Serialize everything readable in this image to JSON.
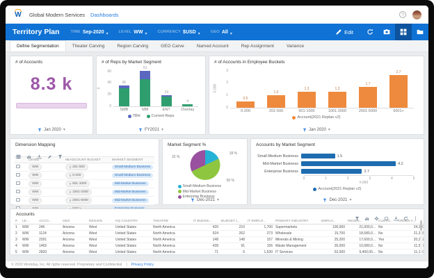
{
  "topbar": {
    "company": "Global Modern Services",
    "nav_link": "Dashboards"
  },
  "bluebar": {
    "title": "Territory Plan",
    "filters": [
      {
        "label": "TIME",
        "value": "Sep-2020"
      },
      {
        "label": "LEVEL",
        "value": "WW"
      },
      {
        "label": "CURRENCY",
        "value": "$USD"
      },
      {
        "label": "GEO",
        "value": "All"
      }
    ],
    "edit_label": "Edit",
    "action_icons": [
      "edit-pencil-icon",
      "refresh-icon",
      "camera-icon",
      "grid-view-icon",
      "folder-icon"
    ],
    "accent": "#0f72d4"
  },
  "tabs": {
    "active": "Define Segmentation",
    "items": [
      "Define Segmentation",
      "Theater Carving",
      "Region Carving",
      "GEO Carve",
      "Named Account",
      "Rep Assignment",
      "Variance"
    ]
  },
  "cards": {
    "accounts_count": {
      "title": "# of Accounts",
      "value": "8.3 k",
      "period": "Jan 2020",
      "accent": "#9d57a8"
    },
    "dimension_mapping": {
      "title": "Dimension Mapping",
      "toolbar_icons": [
        "table-icon",
        "chart-icon",
        "export-icon",
        "edit-icon",
        "filter-icon"
      ],
      "columns": [
        "LEVEL",
        "HEADCOUNT BUCKET",
        "MARKET SEGMENT"
      ],
      "rows": [
        {
          "level": "WW",
          "bucket": "201-500",
          "segment": "Small Medium Business"
        },
        {
          "level": "WW",
          "bucket": "0-200",
          "segment": "Small Medium Business"
        },
        {
          "level": "WW",
          "bucket": "501-1000",
          "segment": "Mid-Market Business"
        },
        {
          "level": "WW",
          "bucket": "1001-2000",
          "segment": "Mid-Market Business"
        },
        {
          "level": "WW",
          "bucket": "2001-5000",
          "segment": "Mid-Market Business"
        },
        {
          "level": "WW",
          "bucket": "5001+",
          "segment": "Enterprise Business"
        }
      ]
    },
    "accounts_table": {
      "title": "Accounts",
      "toolbar_icons": [
        "filter-icon",
        "chart-icon",
        "settings-icon",
        "history-icon",
        "export-icon",
        "refresh-icon",
        "more-icon"
      ],
      "columns": [
        "#",
        "LE...",
        "ACCO...",
        "GEO",
        "REGION",
        "HQ COUNTRY",
        "THEATRE",
        "IT BUDGE...",
        "BUDGET (...",
        "IT EMPLO...",
        "PRIMARY INDUSTRY",
        "EMPLO...",
        "REVEN...",
        "CUSTO...",
        "ORDER V...",
        "ACV"
      ],
      "rows": [
        [
          "1",
          "WW",
          "246",
          "Arizona",
          "West",
          "United States",
          "North America",
          "420",
          "210",
          "1,700",
          "Supermarkets",
          "100,000",
          "21,000,0...",
          "No",
          "24,140",
          "6,441"
        ],
        [
          "2",
          "WW",
          "1124",
          "Arizona",
          "West",
          "United States",
          "North America",
          "524",
          "262",
          "273",
          "Wholesale",
          "15,700",
          "18,580,0...",
          "No",
          "21,358",
          "5,649"
        ],
        [
          "3",
          "WW",
          "2291",
          "Arizona",
          "West",
          "United States",
          "North America",
          "148",
          "148",
          "157",
          "Minerals & Mining",
          "25,200",
          "17,600,0...",
          "Yes",
          "20,232",
          "5,398"
        ],
        [
          "4",
          "WW",
          "1465",
          "Arizona",
          "West",
          "United States",
          "North America",
          "428",
          "91",
          "156",
          "Waste Management",
          "35,000",
          "10,080,0...",
          "No",
          "11,587",
          "3,092"
        ],
        [
          "5",
          "WW",
          "2820",
          "Arizona",
          "West",
          "United States",
          "North America",
          "71",
          "6",
          "1,530",
          "IT Services",
          "52,000",
          "9,400,00...",
          "No",
          "11,130",
          "2,872"
        ]
      ]
    }
  },
  "chart_data": [
    {
      "id": "reps_by_market_segment",
      "type": "bar",
      "stacked": true,
      "title": "# of Reps by Market Segment",
      "categories": [
        "SMB",
        "MM",
        "ENT",
        "Overlay"
      ],
      "series": [
        {
          "name": "Current Reps",
          "color": "#2f9e6e",
          "values": [
            31,
            47,
            17,
            4
          ]
        },
        {
          "name": "TBH",
          "color": "#5a68c0",
          "values": [
            5,
            14,
            2,
            0
          ]
        }
      ],
      "totals": [
        36,
        61,
        19,
        4
      ],
      "ylabel": "#",
      "yticks": [
        0,
        20,
        40,
        60
      ],
      "ylim": [
        0,
        65
      ],
      "legend_order": [
        "TBH",
        "Current Reps"
      ],
      "period": "FY2021"
    },
    {
      "id": "accounts_in_employee_buckets",
      "type": "bar",
      "title": "# of Accounts in Employee Buckets",
      "categories": [
        "0-200",
        "201-500",
        "501-1000",
        "1001-2000",
        "2001-5000",
        "5001+"
      ],
      "values": [
        0.5,
        1.0,
        1.3,
        1.3,
        1.7,
        2.7
      ],
      "labels": [
        "0.5",
        "1.0",
        "1.3",
        "1.3",
        "1.7",
        "2.7"
      ],
      "color": "#ee8a3d",
      "ylabel": "#,000",
      "yticks": [
        0,
        1,
        2,
        3
      ],
      "ylim": [
        0,
        3.3
      ],
      "legend": "Account(2021 Replan v2)",
      "period": "Jan 2020"
    },
    {
      "id": "market_segment_pct",
      "type": "pie",
      "title": "Market Segment %",
      "slices": [
        {
          "label": "Small-Medium Business",
          "pct": 18,
          "color": "#25b2d6"
        },
        {
          "label": "Mid-Market Business",
          "pct": 50,
          "color": "#8ec63f"
        },
        {
          "label": "Enterprise Business",
          "pct": 32,
          "color": "#99509f"
        }
      ],
      "period": "Dec-2021"
    },
    {
      "id": "accounts_by_market_segment",
      "type": "bar",
      "orientation": "horizontal",
      "title": "Accounts by Market Segment",
      "categories": [
        "Small-Medium Business",
        "Mid-Market Business",
        "Enterprise Business"
      ],
      "values": [
        1.5,
        4.2,
        2.7
      ],
      "labels": [
        "1.5",
        "4.2",
        "2.7"
      ],
      "color": "#1e6cb0",
      "xlabel": "#,000",
      "xticks": [
        0,
        1,
        2,
        3,
        4,
        5
      ],
      "xlim": [
        0,
        5
      ],
      "legend": "Account(2021 Replan v2)",
      "period": "Dec-2021"
    }
  ],
  "footer": {
    "copyright": "© 2020 Workday, Inc. All rights reserved. Proprietary and Confidential",
    "privacy": "Privacy Policy"
  }
}
